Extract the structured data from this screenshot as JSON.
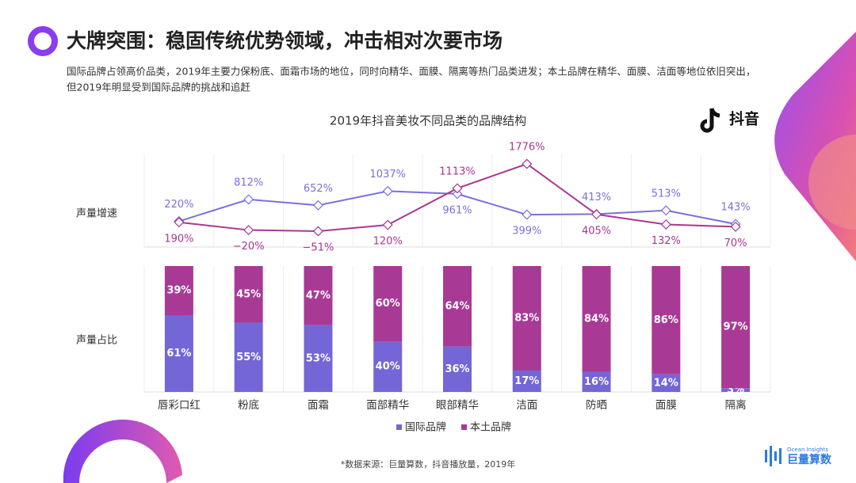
{
  "header": {
    "title": "大牌突围：稳固传统优势领域，冲击相对次要市场",
    "description": [
      "国际品牌占领高价品类，2019年主要力保粉底、面霜市场的地位，同时向精华、面膜、隔离等热门品类进发；本土品牌在精华、面膜、洁面等地位依旧突出，",
      "但2019年明显受到国际品牌的挑战和追赶"
    ]
  },
  "logo_douyin": "抖音",
  "chart_data": [
    {
      "type": "line",
      "title": "2019年抖音美妆不同品类的品牌结构",
      "label": "声量增速",
      "series": [
        {
          "color": "#7b6fe0",
          "values": [
            220,
            812,
            652,
            1037,
            961,
            399,
            413,
            513,
            143
          ],
          "value_labels": [
            "220%",
            "812%",
            "652%",
            "1037%",
            "961%",
            "399%",
            "413%",
            "513%",
            "143%"
          ]
        },
        {
          "color": "#a8388f",
          "values": [
            190,
            -20,
            -51,
            120,
            1113,
            1776,
            405,
            132,
            70
          ],
          "value_labels": [
            "190%",
            "−20%",
            "−51%",
            "120%",
            "1113%",
            "1776%",
            "405%",
            "132%",
            "70%"
          ]
        }
      ]
    },
    {
      "type": "stacked-bar",
      "label": "声量占比",
      "categories": [
        "唇彩口红",
        "粉底",
        "面霜",
        "面部精华",
        "眼部精华",
        "洁面",
        "防晒",
        "面膜",
        "隔离"
      ],
      "series": [
        {
          "name": "国际品牌",
          "color": "#7466d6",
          "values": [
            61,
            55,
            53,
            40,
            36,
            17,
            16,
            14,
            3
          ],
          "value_labels": [
            "61%",
            "55%",
            "53%",
            "40%",
            "36%",
            "17%",
            "16%",
            "14%",
            "3%"
          ]
        },
        {
          "name": "本土品牌",
          "color": "#a83a96",
          "values": [
            39,
            45,
            47,
            60,
            64,
            83,
            84,
            86,
            97
          ],
          "value_labels": [
            "39%",
            "45%",
            "47%",
            "60%",
            "64%",
            "83%",
            "84%",
            "86%",
            "97%"
          ]
        }
      ]
    }
  ],
  "source": "*数据来源：巨量算数，抖音播放量，2019年",
  "logo_ocean": {
    "en": "Ocean Insights",
    "cn": "巨量算数"
  }
}
